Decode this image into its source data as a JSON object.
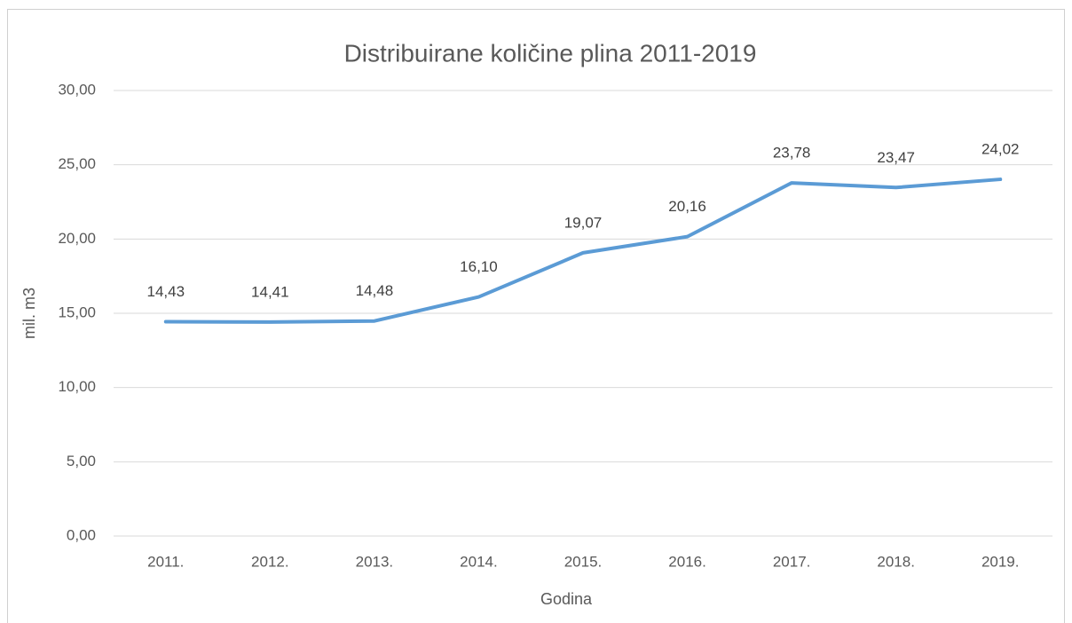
{
  "chart_data": {
    "type": "line",
    "title": "Distribuirane količine plina 2011-2019",
    "x_label": "Godina",
    "y_label": "mil. m3",
    "categories": [
      "2011.",
      "2012.",
      "2013.",
      "2014.",
      "2015.",
      "2016.",
      "2017.",
      "2018.",
      "2019."
    ],
    "series": [
      {
        "name": "mil. m3",
        "color": "#5b9bd5",
        "values": [
          14.43,
          14.41,
          14.48,
          16.1,
          19.07,
          20.16,
          23.78,
          23.47,
          24.02
        ],
        "value_labels": [
          "14,43",
          "14,41",
          "14,48",
          "16,10",
          "19,07",
          "20,16",
          "23,78",
          "23,47",
          "24,02"
        ]
      }
    ],
    "ylim": [
      0,
      30
    ],
    "yticks": [
      {
        "value": 0,
        "label": "0,00"
      },
      {
        "value": 5,
        "label": "5,00"
      },
      {
        "value": 10,
        "label": "10,00"
      },
      {
        "value": 15,
        "label": "15,00"
      },
      {
        "value": 20,
        "label": "20,00"
      },
      {
        "value": 25,
        "label": "25,00"
      },
      {
        "value": 30,
        "label": "30,00"
      }
    ],
    "grid": true
  }
}
